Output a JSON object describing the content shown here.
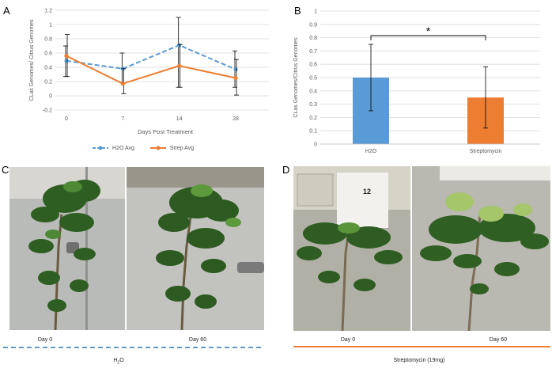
{
  "panels": {
    "a": {
      "letter": "A"
    },
    "b": {
      "letter": "B"
    },
    "c": {
      "letter": "C"
    },
    "d": {
      "letter": "D"
    }
  },
  "chart_data": [
    {
      "type": "line",
      "x": [
        "0",
        "7",
        "14",
        "28"
      ],
      "xlabel": "Days Post Treatment",
      "ylabel": "CLas Genomes/ Citrus Genomes",
      "ylim": [
        -0.2,
        1.2
      ],
      "yticks": [
        "-0.2",
        "0",
        "0.2",
        "0.4",
        "0.6",
        "0.8",
        "1",
        "1.2"
      ],
      "grid": true,
      "legend_position": "bottom",
      "series": [
        {
          "name": "H2O Avg",
          "values": [
            0.49,
            0.38,
            0.71,
            0.37
          ],
          "err_low": [
            0.27,
            0.18,
            0.12,
            0.12
          ],
          "err_high": [
            0.7,
            0.6,
            1.1,
            0.63
          ],
          "color": "#5b9bd5",
          "dash": true
        },
        {
          "name": "Strep Avg",
          "values": [
            0.56,
            0.17,
            0.42,
            0.25
          ],
          "err_low": [
            0.27,
            0.03,
            0.12,
            0.01
          ],
          "err_high": [
            0.86,
            0.38,
            0.72,
            0.51
          ],
          "color": "#ed7d31",
          "dash": false
        }
      ]
    },
    {
      "type": "bar",
      "categories": [
        "H2O",
        "Streptomycin"
      ],
      "values": [
        0.5,
        0.35
      ],
      "err_low": [
        0.25,
        0.12
      ],
      "err_high": [
        0.75,
        0.58
      ],
      "colors": [
        "#5b9bd5",
        "#ed7d31"
      ],
      "ylabel": "CLas Genomes/Citrus Genomes",
      "ylim": [
        0,
        1
      ],
      "yticks": [
        "0",
        "0.1",
        "0.2",
        "0.3",
        "0.4",
        "0.5",
        "0.6",
        "0.7",
        "0.8",
        "0.9",
        "1"
      ],
      "grid": true,
      "annotation": "*"
    }
  ],
  "photos": {
    "c_left": "Day 0",
    "c_right": "Day 60",
    "c_label_main": "H",
    "c_label_sub": "2",
    "c_label_end": "O",
    "d_left": "Day 0",
    "d_right": "Day 60",
    "d_sign": "12",
    "d_label": "Streptomycin (19mg)"
  }
}
